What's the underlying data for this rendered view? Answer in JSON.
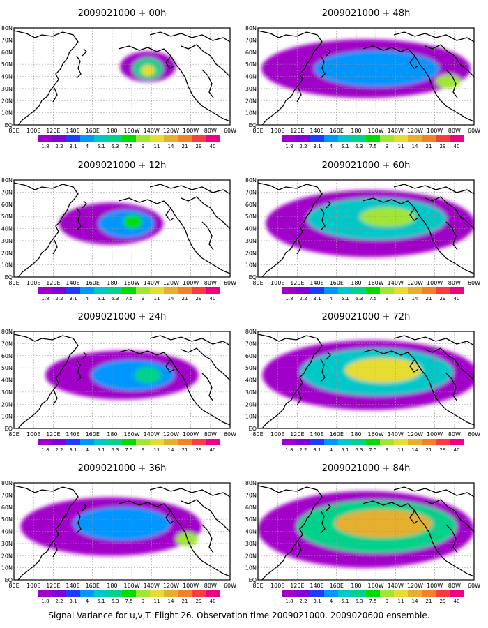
{
  "figure": {
    "caption": "Signal Variance for u,v,T. Flight 26. Observation time 2009021000. 2009020600 ensemble."
  },
  "chart_data": {
    "type": "heatmap",
    "x_tick_labels": [
      "80E",
      "100E",
      "120E",
      "140E",
      "160E",
      "180",
      "160W",
      "140W",
      "120W",
      "100W",
      "80W",
      "60W"
    ],
    "y_tick_labels": [
      "EQ",
      "10N",
      "20N",
      "30N",
      "40N",
      "50N",
      "60N",
      "70N",
      "80N"
    ],
    "xlim": [
      "80E",
      "60W"
    ],
    "ylim": [
      "EQ",
      "80N"
    ],
    "grid": true,
    "colorbar": {
      "levels": [
        "1.8",
        "2.2",
        "3.1",
        "4",
        "5.1",
        "6.3",
        "7.5",
        "9",
        "11",
        "14",
        "21",
        "29",
        "40"
      ],
      "colors": [
        "#a000c8",
        "#8200dc",
        "#1e3cff",
        "#0096ff",
        "#00c8c8",
        "#00d28c",
        "#00dc00",
        "#a0e632",
        "#e6dc32",
        "#e6af2d",
        "#f08228",
        "#fa3c3c",
        "#f00082"
      ]
    },
    "panels": [
      {
        "title": "2009021000 + 00h",
        "lead_h": 0
      },
      {
        "title": "2009021000 + 48h",
        "lead_h": 48
      },
      {
        "title": "2009021000 + 12h",
        "lead_h": 12
      },
      {
        "title": "2009021000 + 60h",
        "lead_h": 60
      },
      {
        "title": "2009021000 + 24h",
        "lead_h": 24
      },
      {
        "title": "2009021000 + 72h",
        "lead_h": 72
      },
      {
        "title": "2009021000 + 36h",
        "lead_h": 36
      },
      {
        "title": "2009021000 + 84h",
        "lead_h": 84
      }
    ]
  }
}
